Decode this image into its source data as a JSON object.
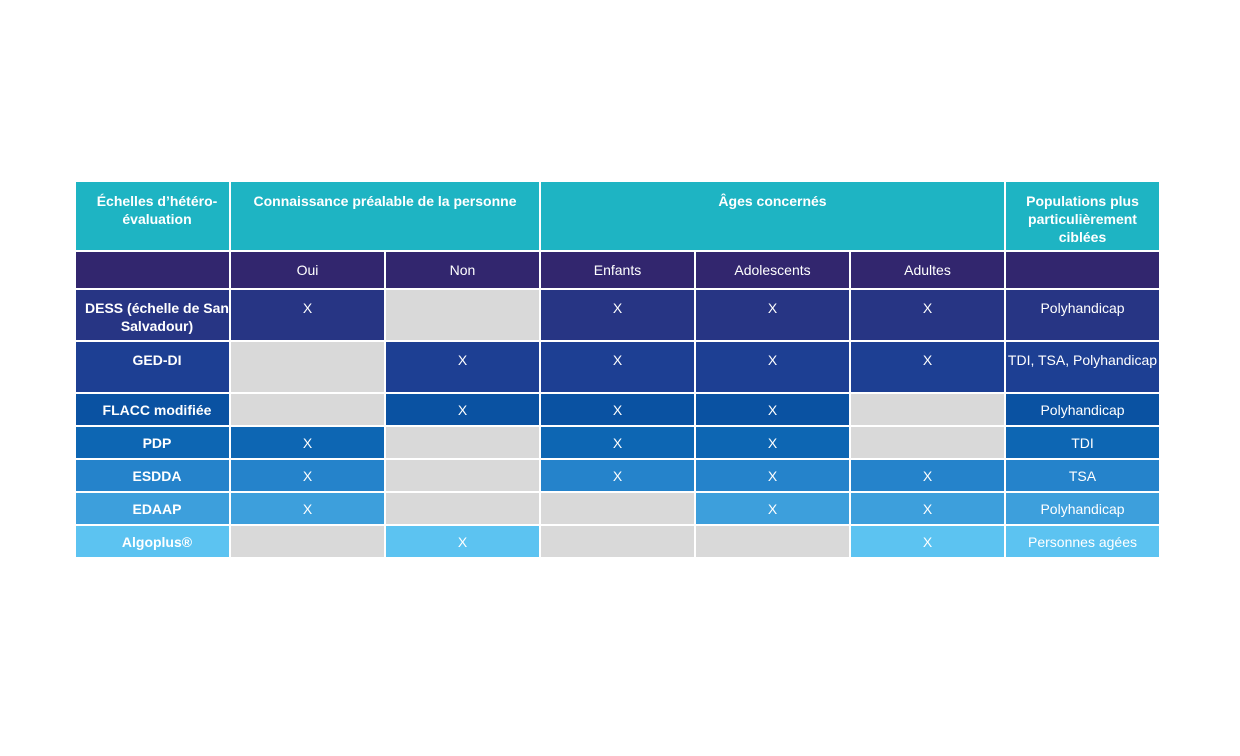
{
  "table": {
    "header": {
      "scale": "Échelles d’hétéro-évaluation",
      "prior_knowledge": "Connaissance préalable de la personne",
      "ages": "Âges concernés",
      "populations": "Populations plus particulièrement ciblées"
    },
    "subheader": {
      "oui": "Oui",
      "non": "Non",
      "enfants": "Enfants",
      "adolescents": "Adolescents",
      "adultes": "Adultes"
    },
    "rows": [
      {
        "name": "DESS (échelle de San Salvadour)",
        "oui": "X",
        "non": "",
        "enfants": "X",
        "adolescents": "X",
        "adultes": "X",
        "populations": "Polyhandicap"
      },
      {
        "name": "GED-DI",
        "oui": "",
        "non": "X",
        "enfants": "X",
        "adolescents": "X",
        "adultes": "X",
        "populations": "TDI, TSA, Polyhandicap"
      },
      {
        "name": "FLACC modifiée",
        "oui": "",
        "non": "X",
        "enfants": "X",
        "adolescents": "X",
        "adultes": "",
        "populations": "Polyhandicap"
      },
      {
        "name": "PDP",
        "oui": "X",
        "non": "",
        "enfants": "X",
        "adolescents": "X",
        "adultes": "",
        "populations": "TDI"
      },
      {
        "name": "ESDDA",
        "oui": "X",
        "non": "",
        "enfants": "X",
        "adolescents": "X",
        "adultes": "X",
        "populations": "TSA"
      },
      {
        "name": "EDAAP",
        "oui": "X",
        "non": "",
        "enfants": "",
        "adolescents": "X",
        "adultes": "X",
        "populations": "Polyhandicap"
      },
      {
        "name": "Algoplus®",
        "oui": "",
        "non": "X",
        "enfants": "",
        "adolescents": "",
        "adultes": "X",
        "populations": "Personnes agées"
      }
    ]
  },
  "colors": {
    "header_teal": "#1eb4c3",
    "subheader_purple": "#32266e",
    "empty_gray": "#d9d9d9",
    "row_gradient": [
      "#273584",
      "#1d3f93",
      "#0a52a2",
      "#0d66b3",
      "#2583cb",
      "#3d9fdc",
      "#5cc3f1"
    ]
  }
}
